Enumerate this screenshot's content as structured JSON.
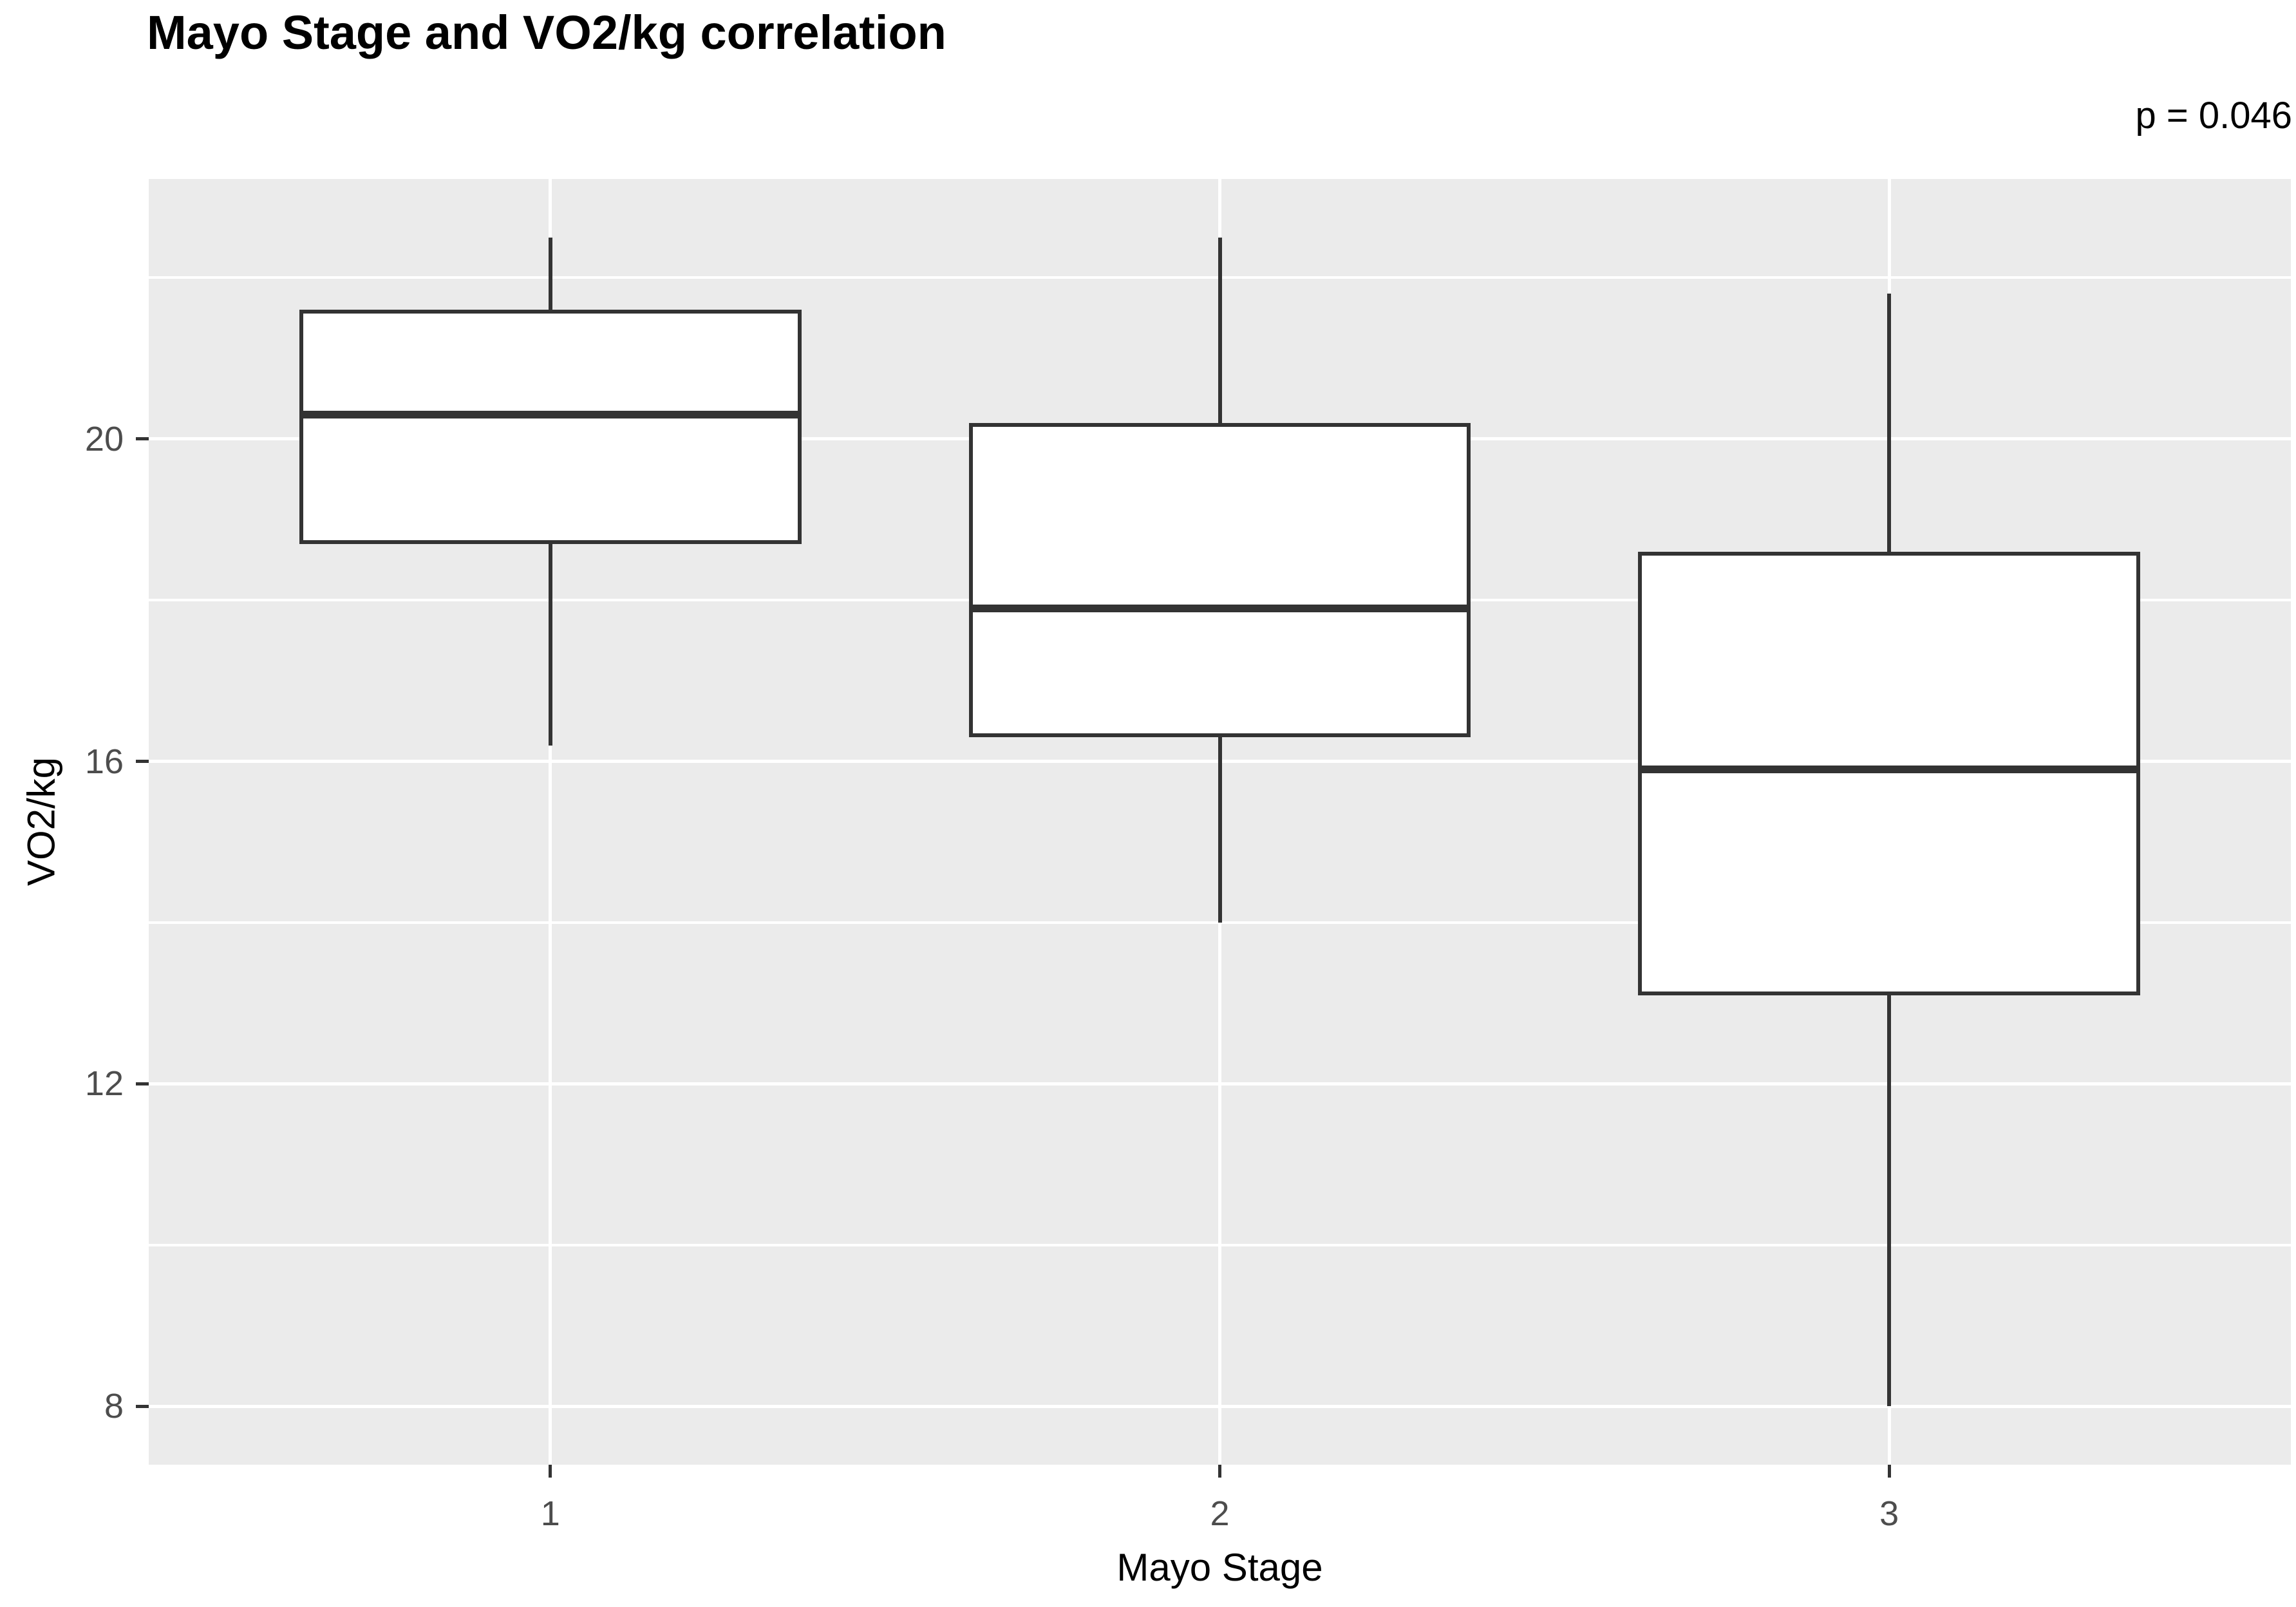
{
  "title": "Mayo Stage and VO2/kg correlation",
  "annotation": {
    "p_value_label": "p = 0.046"
  },
  "axes": {
    "x": {
      "title": "Mayo Stage",
      "categories": [
        "1",
        "2",
        "3"
      ]
    },
    "y": {
      "title": "VO2/kg",
      "tick_labels": [
        "8",
        "12",
        "16",
        "20"
      ],
      "major_ticks": [
        8,
        12,
        16,
        20
      ],
      "minor_gridlines": [
        10,
        14,
        18,
        22
      ]
    }
  },
  "chart_data": {
    "type": "boxplot",
    "title": "Mayo Stage and VO2/kg correlation",
    "xlabel": "Mayo Stage",
    "ylabel": "VO2/kg",
    "categories": [
      "1",
      "2",
      "3"
    ],
    "ylim": [
      7.275,
      23.225
    ],
    "grid": true,
    "legend": false,
    "annotation": "p = 0.046",
    "series": [
      {
        "name": "Mayo Stage 1",
        "whisker_low": 16.2,
        "q1": 18.7,
        "median": 20.3,
        "q3": 21.6,
        "whisker_high": 22.5
      },
      {
        "name": "Mayo Stage 2",
        "whisker_low": 14.0,
        "q1": 16.3,
        "median": 17.9,
        "q3": 20.2,
        "whisker_high": 22.5
      },
      {
        "name": "Mayo Stage 3",
        "whisker_low": 8.0,
        "q1": 13.1,
        "median": 15.9,
        "q3": 18.6,
        "whisker_high": 21.8
      }
    ]
  },
  "colors": {
    "background": "#FFFFFF",
    "panel_background": "#EBEBEB",
    "gridline": "#FFFFFF",
    "box_outline": "#333333",
    "box_fill": "#FFFFFF",
    "tick_label": "#4D4D4D",
    "text": "#000000"
  }
}
